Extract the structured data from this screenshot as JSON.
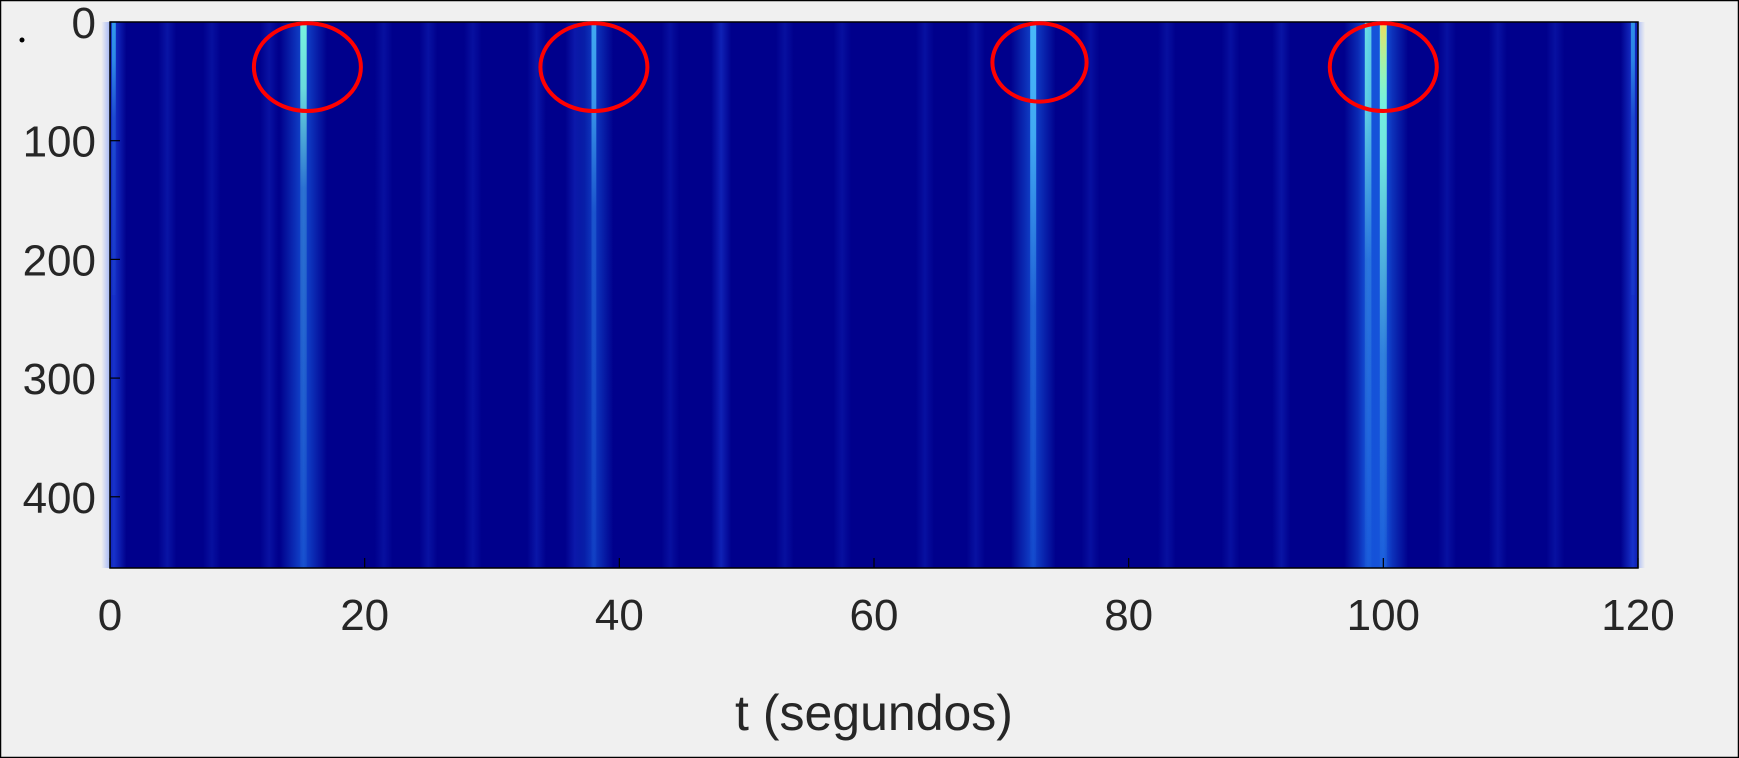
{
  "chart_data": {
    "type": "heatmap",
    "title": "",
    "xlabel": "t (segundos)",
    "ylabel": "",
    "xlim": [
      0,
      120
    ],
    "ylim": [
      0,
      460
    ],
    "y_reversed": true,
    "x_ticks": [
      "0",
      "20",
      "40",
      "60",
      "80",
      "100",
      "120"
    ],
    "y_ticks": [
      "0",
      "100",
      "200",
      "300",
      "400"
    ],
    "grid": false,
    "colormap": "jet",
    "background_color": "#00008c",
    "colors": {
      "outer_background": "#f0f0f0",
      "frame": "#000000",
      "highlight_circle": "#ff0000",
      "axis_text": "#262626"
    },
    "bright_events": [
      {
        "t": 15.2,
        "intensity": 0.85,
        "depth": 140
      },
      {
        "t": 38.0,
        "intensity": 0.45,
        "depth": 160
      },
      {
        "t": 72.5,
        "intensity": 0.75,
        "depth": 240
      },
      {
        "t": 98.8,
        "intensity": 0.9,
        "depth": 200
      },
      {
        "t": 100.0,
        "intensity": 1.0,
        "depth": 280
      }
    ],
    "faint_streaks": [
      {
        "t": 0.3,
        "intensity": 0.65
      },
      {
        "t": 4.5,
        "intensity": 0.18
      },
      {
        "t": 8.0,
        "intensity": 0.14
      },
      {
        "t": 12.5,
        "intensity": 0.16
      },
      {
        "t": 21.5,
        "intensity": 0.14
      },
      {
        "t": 25.0,
        "intensity": 0.16
      },
      {
        "t": 28.5,
        "intensity": 0.14
      },
      {
        "t": 33.5,
        "intensity": 0.2
      },
      {
        "t": 36.5,
        "intensity": 0.22
      },
      {
        "t": 44.0,
        "intensity": 0.14
      },
      {
        "t": 48.0,
        "intensity": 0.3
      },
      {
        "t": 53.0,
        "intensity": 0.14
      },
      {
        "t": 57.5,
        "intensity": 0.14
      },
      {
        "t": 64.0,
        "intensity": 0.15
      },
      {
        "t": 68.0,
        "intensity": 0.16
      },
      {
        "t": 77.0,
        "intensity": 0.14
      },
      {
        "t": 83.0,
        "intensity": 0.14
      },
      {
        "t": 88.0,
        "intensity": 0.14
      },
      {
        "t": 92.0,
        "intensity": 0.18
      },
      {
        "t": 105.0,
        "intensity": 0.15
      },
      {
        "t": 109.0,
        "intensity": 0.16
      },
      {
        "t": 113.5,
        "intensity": 0.15
      },
      {
        "t": 119.6,
        "intensity": 0.6
      }
    ],
    "annotations": [
      {
        "type": "circle",
        "t": 15.5,
        "y": 38,
        "rt": 4.2,
        "ry": 37
      },
      {
        "type": "circle",
        "t": 38.0,
        "y": 38,
        "rt": 4.2,
        "ry": 37
      },
      {
        "type": "circle",
        "t": 73.0,
        "y": 34,
        "rt": 3.7,
        "ry": 33
      },
      {
        "type": "circle",
        "t": 100.0,
        "y": 38,
        "rt": 4.2,
        "ry": 37
      }
    ]
  }
}
